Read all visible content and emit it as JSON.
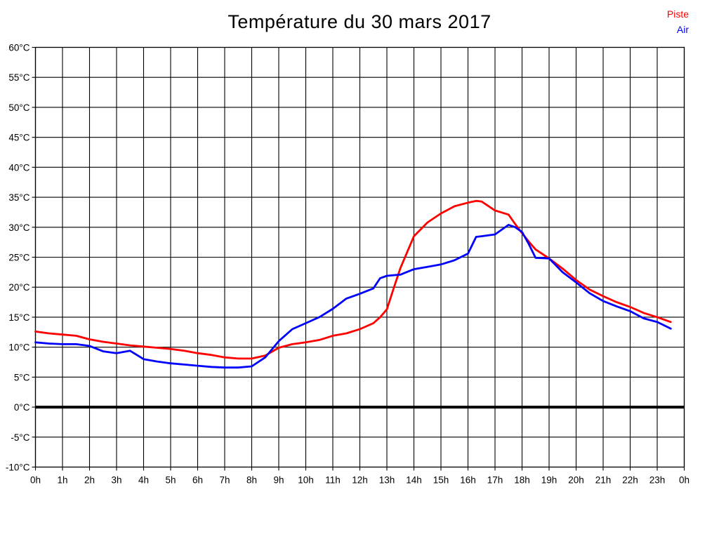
{
  "chart_data": {
    "type": "line",
    "title": "Température du 30 mars 2017",
    "xlabel": "",
    "ylabel": "",
    "xlim": [
      0,
      24
    ],
    "ylim": [
      -10,
      60
    ],
    "ytick_step": 5,
    "grid": true,
    "grid_color": "#000000",
    "zero_line_at": 0,
    "legend_position": "top-right",
    "xtick_labels": [
      "0h",
      "1h",
      "2h",
      "3h",
      "4h",
      "5h",
      "6h",
      "7h",
      "8h",
      "9h",
      "10h",
      "11h",
      "12h",
      "13h",
      "14h",
      "15h",
      "16h",
      "17h",
      "18h",
      "19h",
      "20h",
      "21h",
      "22h",
      "23h",
      "0h"
    ],
    "ytick_labels": [
      "60°C",
      "55°C",
      "50°C",
      "45°C",
      "40°C",
      "35°C",
      "30°C",
      "25°C",
      "20°C",
      "15°C",
      "10°C",
      "5°C",
      "0°C",
      "-5°C",
      "-10°C"
    ],
    "x": [
      0,
      0.5,
      1,
      1.5,
      2,
      2.5,
      3,
      3.5,
      4,
      4.5,
      5,
      5.5,
      6,
      6.5,
      7,
      7.5,
      8,
      8.5,
      9,
      9.5,
      10,
      10.5,
      11,
      11.5,
      12,
      12.5,
      12.75,
      13,
      13.25,
      13.5,
      14,
      14.5,
      15,
      15.5,
      16,
      16.3,
      16.5,
      17,
      17.5,
      17.75,
      18,
      18.25,
      18.5,
      19,
      19.5,
      20,
      20.5,
      21,
      21.5,
      22,
      22.5,
      23,
      23.5
    ],
    "series": [
      {
        "name": "Piste",
        "color": "#ff0000",
        "values": [
          12.6,
          12.3,
          12.1,
          11.9,
          11.3,
          10.9,
          10.6,
          10.3,
          10.1,
          9.9,
          9.7,
          9.4,
          9.0,
          8.7,
          8.3,
          8.1,
          8.1,
          8.6,
          9.9,
          10.5,
          10.8,
          11.2,
          11.9,
          12.3,
          13.0,
          14.0,
          15.0,
          16.3,
          19.8,
          23.2,
          28.5,
          30.8,
          32.3,
          33.5,
          34.1,
          34.4,
          34.3,
          32.8,
          32.1,
          30.5,
          29.0,
          27.6,
          26.3,
          24.8,
          23.1,
          21.2,
          19.6,
          18.5,
          17.5,
          16.7,
          15.7,
          15.0,
          14.2
        ]
      },
      {
        "name": "Air",
        "color": "#0000ff",
        "values": [
          10.8,
          10.6,
          10.5,
          10.5,
          10.2,
          9.3,
          9.0,
          9.4,
          8.0,
          7.6,
          7.3,
          7.1,
          6.9,
          6.7,
          6.6,
          6.6,
          6.8,
          8.3,
          11.0,
          13.0,
          14.0,
          15.0,
          16.4,
          18.1,
          18.9,
          19.8,
          21.5,
          21.9,
          22.0,
          22.1,
          23.0,
          23.4,
          23.8,
          24.5,
          25.6,
          28.4,
          28.5,
          28.8,
          30.4,
          30.0,
          29.2,
          27.2,
          24.9,
          24.8,
          22.5,
          20.8,
          19.0,
          17.7,
          16.8,
          16.0,
          14.8,
          14.2,
          13.1
        ]
      }
    ]
  }
}
